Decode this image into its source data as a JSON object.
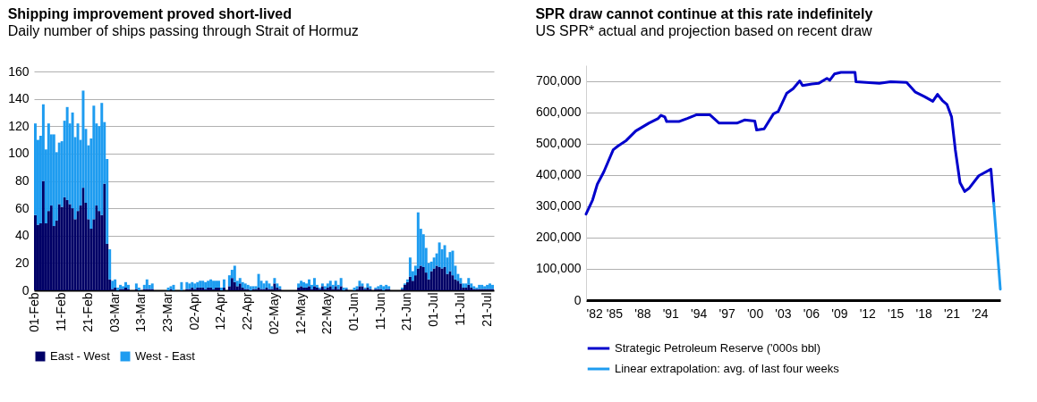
{
  "chart_data": [
    {
      "type": "bar",
      "title": "Shipping improvement proved short-lived",
      "subtitle": "Daily number of ships passing through Strait of Hormuz",
      "categories": [
        "01-Feb",
        null,
        null,
        null,
        null,
        null,
        null,
        null,
        null,
        null,
        "11-Feb",
        null,
        null,
        null,
        null,
        null,
        null,
        null,
        null,
        null,
        "21-Feb",
        null,
        null,
        null,
        null,
        null,
        null,
        null,
        null,
        null,
        "03-Mar",
        null,
        null,
        null,
        null,
        null,
        null,
        null,
        null,
        null,
        "13-Mar",
        null,
        null,
        null,
        null,
        null,
        null,
        null,
        null,
        null,
        "23-Mar",
        null,
        null,
        null,
        null,
        null,
        null,
        null,
        null,
        null,
        "02-Apr",
        null,
        null,
        null,
        null,
        null,
        null,
        null,
        null,
        null,
        "12-Apr",
        null,
        null,
        null,
        null,
        null,
        null,
        null,
        null,
        null,
        "22-Apr",
        null,
        null,
        null,
        null,
        null,
        null,
        null,
        null,
        null,
        "02-May",
        null,
        null,
        null,
        null,
        null,
        null,
        null,
        null,
        null,
        "12-May",
        null,
        null,
        null,
        null,
        null,
        null,
        null,
        null,
        null,
        "22-May",
        null,
        null,
        null,
        null,
        null,
        null,
        null,
        null,
        null,
        "01-Jun",
        null,
        null,
        null,
        null,
        null,
        null,
        null,
        null,
        null,
        "11-Jun",
        null,
        null,
        null,
        null,
        null,
        null,
        null,
        null,
        null,
        "21-Jun",
        null,
        null,
        null,
        null,
        null,
        null,
        null,
        null,
        null,
        "01-Jul",
        null,
        null,
        null,
        null,
        null,
        null,
        null,
        null,
        null,
        "11-Jul",
        null,
        null,
        null,
        null,
        null,
        null,
        null,
        null,
        null,
        "21-Jul",
        null,
        null
      ],
      "stacked": true,
      "series": [
        {
          "name": "East - West",
          "color": "#000066",
          "values": [
            55,
            48,
            49,
            80,
            49,
            58,
            62,
            47,
            51,
            63,
            61,
            68,
            66,
            63,
            60,
            52,
            58,
            62,
            75,
            64,
            52,
            45,
            52,
            62,
            58,
            55,
            78,
            34,
            8,
            1,
            2,
            0,
            1,
            1,
            2,
            1,
            0,
            0,
            1,
            0,
            0,
            1,
            1,
            1,
            1,
            0,
            0,
            0,
            0,
            0,
            0,
            1,
            0,
            0,
            0,
            0,
            0,
            1,
            1,
            2,
            1,
            2,
            2,
            2,
            1,
            2,
            2,
            1,
            2,
            2,
            0,
            2,
            0,
            3,
            9,
            6,
            3,
            5,
            2,
            1,
            1,
            0,
            1,
            1,
            2,
            1,
            1,
            2,
            1,
            1,
            5,
            2,
            1,
            0,
            0,
            0,
            0,
            0,
            0,
            2,
            3,
            2,
            2,
            3,
            1,
            3,
            2,
            1,
            3,
            1,
            2,
            3,
            1,
            3,
            1,
            3,
            0,
            1,
            0,
            0,
            0,
            1,
            3,
            3,
            1,
            2,
            1,
            0,
            1,
            1,
            1,
            0,
            1,
            1,
            0,
            0,
            0,
            0,
            1,
            4,
            6,
            10,
            7,
            11,
            16,
            18,
            17,
            13,
            8,
            14,
            16,
            18,
            17,
            16,
            17,
            12,
            14,
            11,
            8,
            7,
            5,
            2,
            2,
            4,
            2,
            1,
            1,
            1,
            1,
            1,
            1,
            1,
            1
          ]
        },
        {
          "name": "West - East",
          "color": "#1e9cf0",
          "values": [
            67,
            62,
            64,
            56,
            54,
            64,
            52,
            67,
            50,
            45,
            48,
            56,
            68,
            59,
            70,
            60,
            64,
            48,
            71,
            54,
            54,
            66,
            83,
            60,
            62,
            82,
            45,
            62,
            22,
            6,
            6,
            2,
            3,
            2,
            4,
            3,
            0,
            0,
            4,
            2,
            0,
            3,
            7,
            3,
            4,
            0,
            0,
            0,
            0,
            0,
            2,
            2,
            4,
            0,
            0,
            6,
            0,
            5,
            4,
            4,
            4,
            4,
            5,
            5,
            5,
            5,
            6,
            6,
            5,
            5,
            2,
            6,
            0,
            8,
            6,
            12,
            4,
            4,
            4,
            4,
            3,
            3,
            2,
            2,
            10,
            6,
            4,
            5,
            4,
            2,
            4,
            3,
            2,
            0,
            0,
            0,
            0,
            0,
            0,
            3,
            4,
            4,
            3,
            5,
            3,
            6,
            2,
            1,
            2,
            2,
            3,
            4,
            3,
            4,
            3,
            6,
            2,
            1,
            0,
            0,
            2,
            2,
            4,
            2,
            1,
            3,
            2,
            0,
            1,
            2,
            3,
            3,
            3,
            2,
            0,
            0,
            0,
            0,
            1,
            1,
            2,
            14,
            7,
            7,
            41,
            27,
            24,
            18,
            12,
            7,
            8,
            9,
            18,
            14,
            16,
            12,
            14,
            18,
            10,
            5,
            4,
            3,
            3,
            5,
            3,
            2,
            1,
            3,
            3,
            2,
            3,
            4,
            3
          ]
        }
      ],
      "ylim": [
        0,
        160
      ],
      "yticks": [
        0,
        20,
        40,
        60,
        80,
        100,
        120,
        140,
        160
      ],
      "grid": "y",
      "legend": "bottom"
    },
    {
      "type": "line",
      "title": "SPR draw cannot continue at this rate indefinitely",
      "subtitle": "US SPR* actual and projection based on recent draw",
      "series": [
        {
          "name": "Strategic Petroleum Reserve ('000s bbl)",
          "color": "#0000cc",
          "x": [
            1982.0,
            1982.7,
            1983.2,
            1983.9,
            1984.9,
            1985.4,
            1986.3,
            1987.3,
            1988.7,
            1989.7,
            1990.0,
            1990.4,
            1990.6,
            1991.9,
            1992.8,
            1993.8,
            1995.2,
            1996.2,
            1998.1,
            1998.9,
            2000.0,
            2000.2,
            2001.0,
            2002.0,
            2002.5,
            2003.4,
            2004.1,
            2004.8,
            2005.1,
            2006.1,
            2006.8,
            2007.7,
            2008.0,
            2008.5,
            2009.2,
            2010.7,
            2010.8,
            2013.3,
            2014.5,
            2016.2,
            2017.1,
            2018.1,
            2019.0,
            2019.5,
            2020.0,
            2020.5,
            2021.0,
            2021.4,
            2021.9,
            2022.4,
            2022.9,
            2023.9,
            2025.2,
            2025.5
          ],
          "values": [
            275000,
            320000,
            370000,
            410000,
            480000,
            492000,
            510000,
            540000,
            565000,
            580000,
            590000,
            585000,
            570000,
            570000,
            580000,
            592000,
            592000,
            565000,
            565000,
            575000,
            572000,
            543000,
            547000,
            595000,
            602000,
            660000,
            675000,
            700000,
            685000,
            690000,
            692000,
            708000,
            702000,
            722000,
            727000,
            727000,
            697000,
            692000,
            697000,
            695000,
            665000,
            650000,
            635000,
            657000,
            638000,
            625000,
            585000,
            480000,
            375000,
            347000,
            358000,
            397000,
            418000,
            310000
          ]
        },
        {
          "name": "Linear extrapolation: avg. of last four weeks",
          "color": "#1e9cf0",
          "x": [
            2025.5,
            2026.2
          ],
          "values": [
            310000,
            35000
          ]
        }
      ],
      "xlim": [
        1982,
        2026.2
      ],
      "xticks": [
        {
          "value": 1982,
          "label": "'82"
        },
        {
          "value": 1985,
          "label": "'85"
        },
        {
          "value": 1988,
          "label": "'88"
        },
        {
          "value": 1991,
          "label": "'91"
        },
        {
          "value": 1994,
          "label": "'94"
        },
        {
          "value": 1997,
          "label": "'97"
        },
        {
          "value": 2000,
          "label": "'00"
        },
        {
          "value": 2003,
          "label": "'03"
        },
        {
          "value": 2006,
          "label": "'06"
        },
        {
          "value": 2009,
          "label": "'09"
        },
        {
          "value": 2012,
          "label": "'12"
        },
        {
          "value": 2015,
          "label": "'15"
        },
        {
          "value": 2018,
          "label": "'18"
        },
        {
          "value": 2021,
          "label": "'21"
        },
        {
          "value": 2024,
          "label": "'24"
        }
      ],
      "ylim": [
        0,
        750000
      ],
      "yticks": [
        0,
        {
          "value": 100000,
          "label": "100,000"
        },
        {
          "value": 200000,
          "label": "200,000"
        },
        {
          "value": 300000,
          "label": "300,000"
        },
        {
          "value": 400000,
          "label": "400,000"
        },
        {
          "value": 500000,
          "label": "500,000"
        },
        {
          "value": 600000,
          "label": "600,000"
        },
        {
          "value": 700000,
          "label": "700,000"
        }
      ],
      "grid": "y",
      "legend": "bottom"
    }
  ]
}
